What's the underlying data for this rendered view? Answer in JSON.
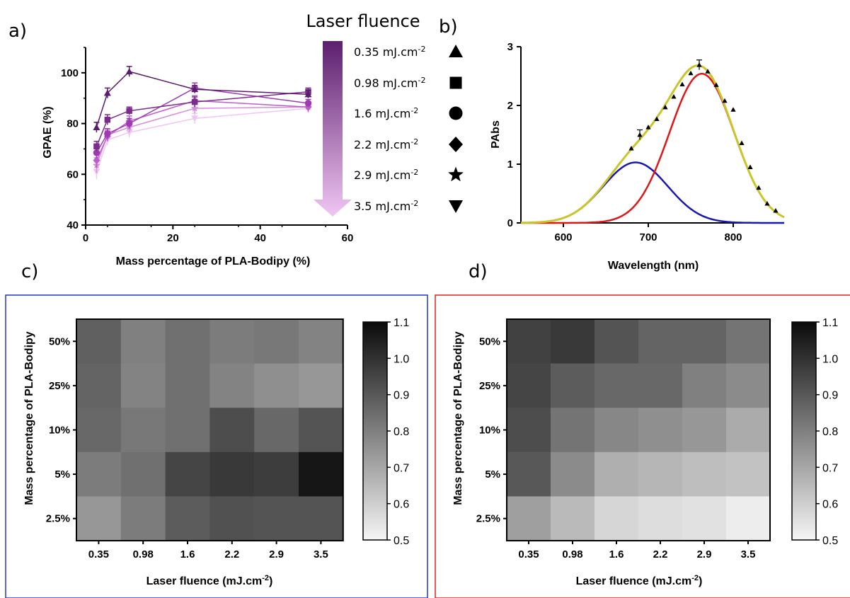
{
  "panel_labels": {
    "a": "a)",
    "b": "b)",
    "c": "c)",
    "d": "d)"
  },
  "colors": {
    "series_dark": "#5c1f6e",
    "series_light": "#f0c6f2",
    "frame_c": "#2233cc",
    "frame_d": "#dd2222",
    "fit_total": "#c9c62a",
    "fit_red": "#e01616",
    "fit_blue": "#1818b0"
  },
  "chart_data": [
    {
      "type": "line",
      "panel": "a",
      "xlabel": "Mass percentage of PLA-Bodipy (%)",
      "ylabel": "GPAE (%)",
      "xlim": [
        0,
        60
      ],
      "ylim": [
        40,
        110
      ],
      "xticks": [
        "0",
        "20",
        "40",
        "60"
      ],
      "yticks": [
        "40",
        "60",
        "80",
        "100"
      ],
      "legend_title": "Laser fluence",
      "x": [
        2.5,
        5,
        10,
        25,
        51
      ],
      "series": [
        {
          "name": "0.35 mJ.cm",
          "sup": "-2",
          "marker": "triangle-up",
          "color": "#5a1b6c",
          "values": [
            78.5,
            92,
            100.5,
            93.5,
            91.5
          ],
          "err": [
            2,
            2,
            2,
            1.5,
            1.5
          ]
        },
        {
          "name": "0.98 mJ.cm",
          "sup": "-2",
          "marker": "square",
          "color": "#7b2b8e",
          "values": [
            71,
            81.5,
            85,
            88.5,
            92.5
          ],
          "err": [
            2,
            2,
            1.5,
            2,
            1.5
          ]
        },
        {
          "name": "1.6 mJ.cm",
          "sup": "-2",
          "marker": "circle",
          "color": "#9c3cb0",
          "values": [
            68.5,
            76,
            80,
            94,
            88
          ],
          "err": [
            2,
            2,
            2,
            2,
            1.5
          ]
        },
        {
          "name": "2.2 mJ.cm",
          "sup": "-2",
          "marker": "diamond",
          "color": "#bd5ccc",
          "values": [
            65.5,
            75,
            81,
            89,
            86.5
          ],
          "err": [
            3,
            2,
            2,
            2,
            2
          ]
        },
        {
          "name": "2.9 mJ.cm",
          "sup": "-2",
          "marker": "star",
          "color": "#d88ddf",
          "values": [
            63.5,
            75.5,
            78.5,
            86,
            86.5
          ],
          "err": [
            3,
            2,
            2,
            2,
            1.5
          ]
        },
        {
          "name": "3.5 mJ.cm",
          "sup": "-2",
          "marker": "triangle-down",
          "color": "#f0c6f2",
          "values": [
            61,
            73.5,
            76.5,
            82,
            86
          ],
          "err": [
            3,
            2,
            2,
            2,
            1.5
          ]
        }
      ]
    },
    {
      "type": "line",
      "panel": "b",
      "xlabel": "Wavelength (nm)",
      "ylabel": "PAbs",
      "xlim": [
        550,
        860
      ],
      "ylim": [
        0,
        3
      ],
      "xticks": [
        "600",
        "700",
        "800"
      ],
      "yticks": [
        "0",
        "1",
        "2",
        "3"
      ],
      "gaussians": [
        {
          "color": "#1818b0",
          "amp": 1.03,
          "center": 685,
          "sigma": 38
        },
        {
          "color": "#e01616",
          "amp": 2.54,
          "center": 763,
          "sigma": 38
        }
      ],
      "total_fit_color": "#c9c62a",
      "scatter": {
        "x": [
          680,
          690,
          700,
          710,
          720,
          730,
          740,
          750,
          760,
          770,
          780,
          790,
          800,
          810,
          820,
          830,
          840,
          850
        ],
        "y": [
          1.27,
          1.5,
          1.63,
          1.77,
          1.97,
          2.15,
          2.36,
          2.55,
          2.69,
          2.58,
          2.35,
          2.08,
          1.93,
          1.36,
          0.95,
          0.6,
          0.33,
          0.21
        ]
      }
    },
    {
      "type": "heatmap",
      "panel": "c",
      "xlabel": "Laser fluence (mJ.cm",
      "xlabel_sup": "-2",
      "xlabel_end": ")",
      "ylabel": "Mass percentage of PLA-Bodipy",
      "x_categories": [
        "0.35",
        "0.98",
        "1.6",
        "2.2",
        "2.9",
        "3.5"
      ],
      "y_categories": [
        "50%",
        "25%",
        "10%",
        "5%",
        "2.5%"
      ],
      "colorbar_ticks": [
        "1.1",
        "1.0",
        "0.9",
        "0.8",
        "0.7",
        "0.6",
        "0.5"
      ],
      "vmin": 0.5,
      "vmax": 1.1,
      "values": [
        [
          0.88,
          0.8,
          0.84,
          0.81,
          0.82,
          0.79
        ],
        [
          0.87,
          0.79,
          0.84,
          0.79,
          0.76,
          0.74
        ],
        [
          0.86,
          0.82,
          0.84,
          0.93,
          0.86,
          0.91
        ],
        [
          0.81,
          0.84,
          0.95,
          0.98,
          0.97,
          1.07
        ],
        [
          0.74,
          0.81,
          0.89,
          0.92,
          0.91,
          0.91
        ]
      ]
    },
    {
      "type": "heatmap",
      "panel": "d",
      "xlabel": "Laser fluence (mJ.cm",
      "xlabel_sup": "-2",
      "xlabel_end": ")",
      "ylabel": "Mass percentage of PLA-Bodipy",
      "x_categories": [
        "0.35",
        "0.98",
        "1.6",
        "2.2",
        "2.9",
        "3.5"
      ],
      "y_categories": [
        "50%",
        "25%",
        "10%",
        "5%",
        "2.5%"
      ],
      "colorbar_ticks": [
        "1.1",
        "1.0",
        "0.9",
        "0.8",
        "0.7",
        "0.6",
        "0.5"
      ],
      "vmin": 0.5,
      "vmax": 1.1,
      "values": [
        [
          0.96,
          0.98,
          0.91,
          0.87,
          0.87,
          0.83
        ],
        [
          0.95,
          0.89,
          0.86,
          0.86,
          0.8,
          0.77
        ],
        [
          0.93,
          0.83,
          0.78,
          0.76,
          0.74,
          0.69
        ],
        [
          0.9,
          0.77,
          0.68,
          0.66,
          0.64,
          0.63
        ],
        [
          0.72,
          0.65,
          0.58,
          0.56,
          0.55,
          0.52
        ]
      ]
    }
  ]
}
